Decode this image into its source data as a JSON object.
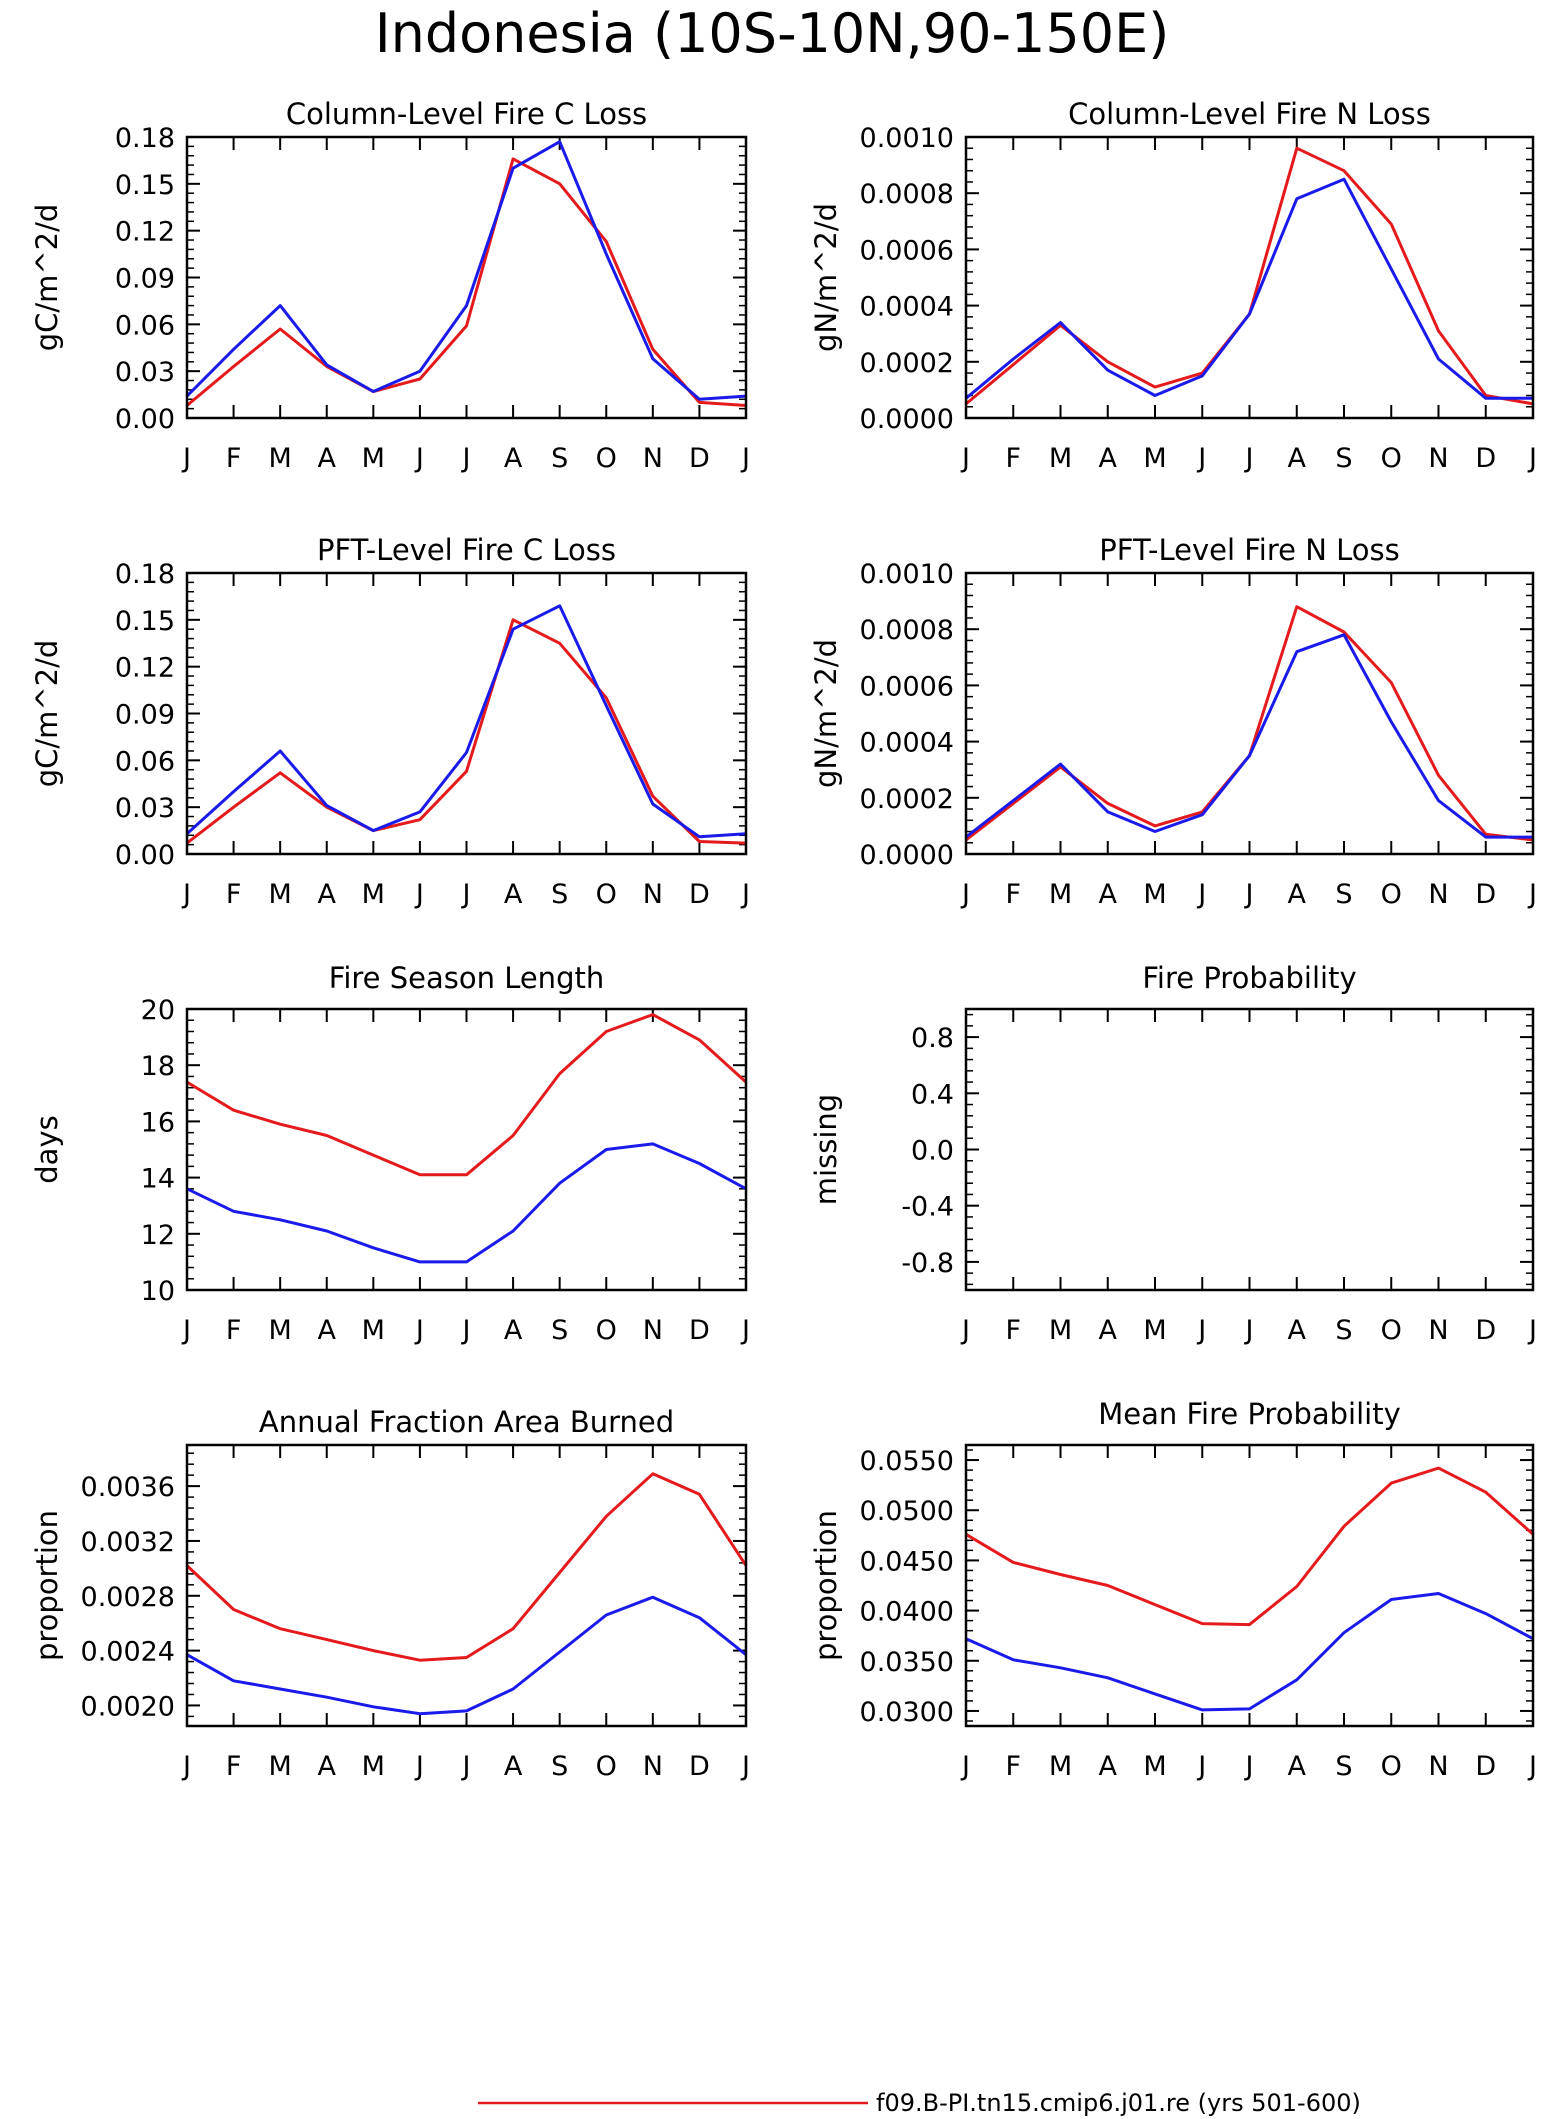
{
  "figure": {
    "title": "Indonesia (10S-10N,90-150E)",
    "months": [
      "J",
      "F",
      "M",
      "A",
      "M",
      "J",
      "J",
      "A",
      "S",
      "O",
      "N",
      "D",
      "J"
    ]
  },
  "legend": {
    "entries": [
      {
        "label": "f09.B-PI.tn15.cmip6.j01.re (yrs 501-600)",
        "color": "#e41a1c"
      }
    ]
  },
  "colors": {
    "red_series": "#e41a1c",
    "blue_series": "#1a1aeb"
  },
  "chart_data": [
    {
      "type": "line",
      "title": "Column-Level Fire C Loss",
      "ylabel": "gC/m^2/d",
      "xlabel": "",
      "x": [
        "J",
        "F",
        "M",
        "A",
        "M",
        "J",
        "J",
        "A",
        "S",
        "O",
        "N",
        "D",
        "J"
      ],
      "ylim": [
        0,
        0.18
      ],
      "yticks": [
        "0.00",
        "0.03",
        "0.06",
        "0.09",
        "0.12",
        "0.15",
        "0.18"
      ],
      "series": [
        {
          "color": "#e41a1c",
          "values": [
            0.008,
            0.033,
            0.057,
            0.033,
            0.017,
            0.025,
            0.059,
            0.166,
            0.15,
            0.113,
            0.044,
            0.01,
            0.008
          ]
        },
        {
          "color": "#1a1aeb",
          "values": [
            0.014,
            0.044,
            0.072,
            0.034,
            0.017,
            0.03,
            0.072,
            0.16,
            0.177,
            0.105,
            0.038,
            0.012,
            0.014
          ]
        }
      ]
    },
    {
      "type": "line",
      "title": "Column-Level Fire N Loss",
      "ylabel": "gN/m^2/d",
      "xlabel": "",
      "x": [
        "J",
        "F",
        "M",
        "A",
        "M",
        "J",
        "J",
        "A",
        "S",
        "O",
        "N",
        "D",
        "J"
      ],
      "ylim": [
        0,
        0.001
      ],
      "yticks": [
        "0.0000",
        "0.0002",
        "0.0004",
        "0.0006",
        "0.0008",
        "0.0010"
      ],
      "series": [
        {
          "color": "#e41a1c",
          "values": [
            5e-05,
            0.00019,
            0.00033,
            0.0002,
            0.00011,
            0.00016,
            0.00037,
            0.00096,
            0.00088,
            0.00069,
            0.00031,
            8e-05,
            5e-05
          ]
        },
        {
          "color": "#1a1aeb",
          "values": [
            7e-05,
            0.00021,
            0.00034,
            0.00017,
            8e-05,
            0.00015,
            0.00037,
            0.00078,
            0.00085,
            0.00053,
            0.00021,
            7e-05,
            7e-05
          ]
        }
      ]
    },
    {
      "type": "line",
      "title": "PFT-Level Fire C Loss",
      "ylabel": "gC/m^2/d",
      "xlabel": "",
      "x": [
        "J",
        "F",
        "M",
        "A",
        "M",
        "J",
        "J",
        "A",
        "S",
        "O",
        "N",
        "D",
        "J"
      ],
      "ylim": [
        0,
        0.18
      ],
      "yticks": [
        "0.00",
        "0.03",
        "0.06",
        "0.09",
        "0.12",
        "0.15",
        "0.18"
      ],
      "series": [
        {
          "color": "#e41a1c",
          "values": [
            0.007,
            0.03,
            0.052,
            0.03,
            0.015,
            0.022,
            0.053,
            0.15,
            0.135,
            0.1,
            0.037,
            0.008,
            0.007
          ]
        },
        {
          "color": "#1a1aeb",
          "values": [
            0.013,
            0.04,
            0.066,
            0.031,
            0.015,
            0.027,
            0.065,
            0.144,
            0.159,
            0.095,
            0.032,
            0.011,
            0.013
          ]
        }
      ]
    },
    {
      "type": "line",
      "title": "PFT-Level Fire N Loss",
      "ylabel": "gN/m^2/d",
      "xlabel": "",
      "x": [
        "J",
        "F",
        "M",
        "A",
        "M",
        "J",
        "J",
        "A",
        "S",
        "O",
        "N",
        "D",
        "J"
      ],
      "ylim": [
        0,
        0.001
      ],
      "yticks": [
        "0.0000",
        "0.0002",
        "0.0004",
        "0.0006",
        "0.0008",
        "0.0010"
      ],
      "series": [
        {
          "color": "#e41a1c",
          "values": [
            5e-05,
            0.00018,
            0.00031,
            0.00018,
            0.0001,
            0.00015,
            0.00035,
            0.00088,
            0.00079,
            0.00061,
            0.00028,
            7e-05,
            5e-05
          ]
        },
        {
          "color": "#1a1aeb",
          "values": [
            6e-05,
            0.00019,
            0.00032,
            0.00015,
            8e-05,
            0.00014,
            0.00035,
            0.00072,
            0.00078,
            0.00047,
            0.00019,
            6e-05,
            6e-05
          ]
        }
      ]
    },
    {
      "type": "line",
      "title": "Fire Season Length",
      "ylabel": "days",
      "xlabel": "",
      "x": [
        "J",
        "F",
        "M",
        "A",
        "M",
        "J",
        "J",
        "A",
        "S",
        "O",
        "N",
        "D",
        "J"
      ],
      "ylim": [
        10,
        20
      ],
      "yticks": [
        "10",
        "12",
        "14",
        "16",
        "18",
        "20"
      ],
      "series": [
        {
          "color": "#e41a1c",
          "values": [
            17.4,
            16.4,
            15.9,
            15.5,
            14.8,
            14.1,
            14.1,
            15.5,
            17.7,
            19.2,
            19.8,
            18.9,
            17.4
          ]
        },
        {
          "color": "#1a1aeb",
          "values": [
            13.6,
            12.8,
            12.5,
            12.1,
            11.5,
            11.0,
            11.0,
            12.1,
            13.8,
            15.0,
            15.2,
            14.5,
            13.6
          ]
        }
      ]
    },
    {
      "type": "line",
      "title": "Fire Probability",
      "ylabel": "missing",
      "xlabel": "",
      "x": [
        "J",
        "F",
        "M",
        "A",
        "M",
        "J",
        "J",
        "A",
        "S",
        "O",
        "N",
        "D",
        "J"
      ],
      "ylim": [
        -1.0,
        1.0
      ],
      "yticks": [
        "-0.8",
        "-0.4",
        "0.0",
        "0.4",
        "0.8"
      ],
      "series": []
    },
    {
      "type": "line",
      "title": "Annual Fraction Area Burned",
      "ylabel": "proportion",
      "xlabel": "",
      "x": [
        "J",
        "F",
        "M",
        "A",
        "M",
        "J",
        "J",
        "A",
        "S",
        "O",
        "N",
        "D",
        "J"
      ],
      "ylim": [
        0.00185,
        0.0039
      ],
      "yticks": [
        "0.0020",
        "0.0024",
        "0.0028",
        "0.0032",
        "0.0036"
      ],
      "series": [
        {
          "color": "#e41a1c",
          "values": [
            0.00302,
            0.0027,
            0.00256,
            0.00248,
            0.0024,
            0.00233,
            0.00235,
            0.00256,
            0.00297,
            0.00338,
            0.00369,
            0.00354,
            0.00302
          ]
        },
        {
          "color": "#1a1aeb",
          "values": [
            0.00237,
            0.00218,
            0.00212,
            0.00206,
            0.00199,
            0.00194,
            0.00196,
            0.00212,
            0.00239,
            0.00266,
            0.00279,
            0.00264,
            0.00237
          ]
        }
      ]
    },
    {
      "type": "line",
      "title": "Mean Fire Probability",
      "ylabel": "proportion",
      "xlabel": "",
      "x": [
        "J",
        "F",
        "M",
        "A",
        "M",
        "J",
        "J",
        "A",
        "S",
        "O",
        "N",
        "D",
        "J"
      ],
      "ylim": [
        0.0285,
        0.0565
      ],
      "yticks": [
        "0.0300",
        "0.0350",
        "0.0400",
        "0.0450",
        "0.0500",
        "0.0550"
      ],
      "series": [
        {
          "color": "#e41a1c",
          "values": [
            0.0476,
            0.0448,
            0.0436,
            0.0425,
            0.0406,
            0.0387,
            0.0386,
            0.0424,
            0.0484,
            0.0527,
            0.0542,
            0.0518,
            0.0476
          ]
        },
        {
          "color": "#1a1aeb",
          "values": [
            0.0372,
            0.0351,
            0.0343,
            0.0333,
            0.0317,
            0.0301,
            0.0302,
            0.0331,
            0.0378,
            0.0411,
            0.0417,
            0.0397,
            0.0372
          ]
        }
      ]
    }
  ]
}
